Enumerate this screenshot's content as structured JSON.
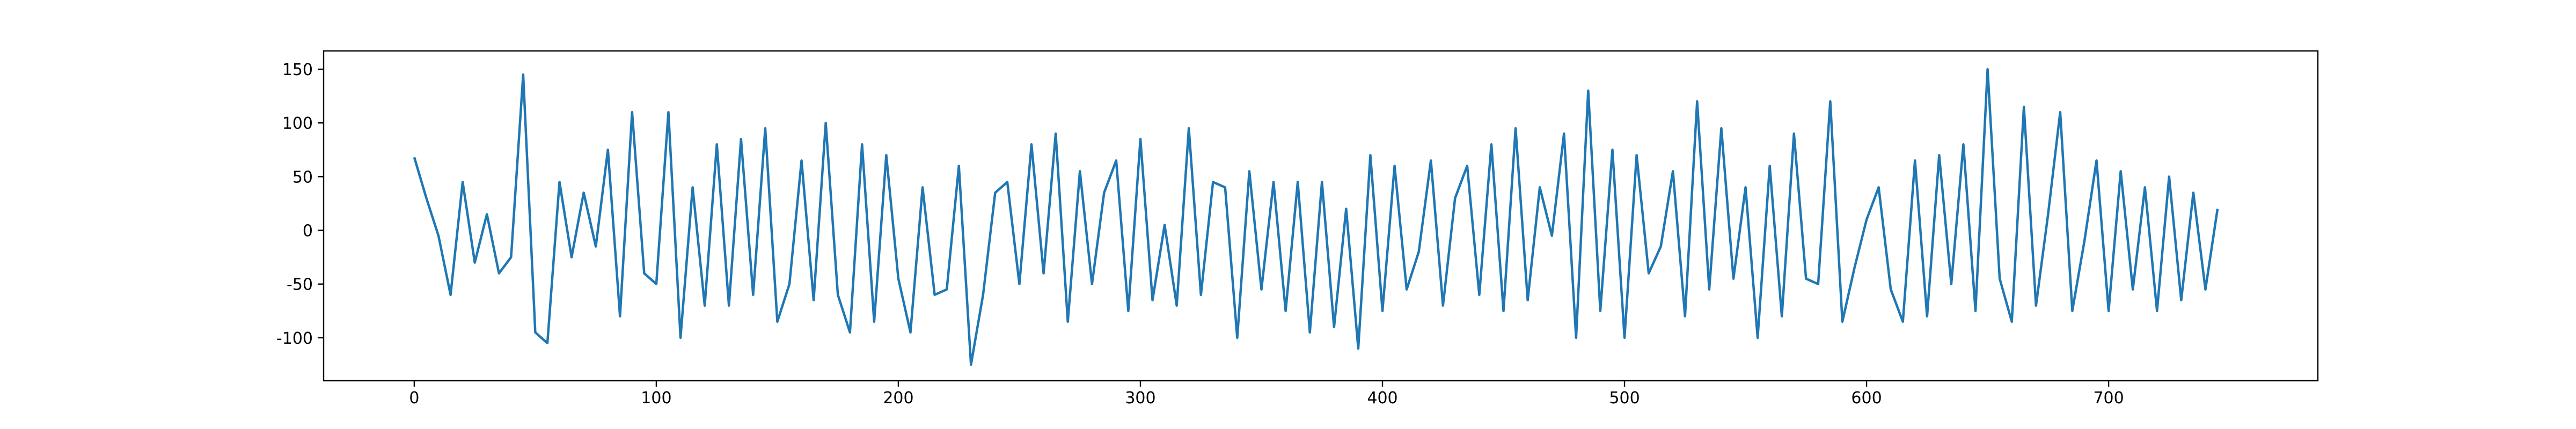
{
  "chart_data": {
    "type": "line",
    "x": [
      0,
      5,
      10,
      15,
      20,
      25,
      30,
      35,
      40,
      45,
      50,
      55,
      60,
      65,
      70,
      75,
      80,
      85,
      90,
      95,
      100,
      105,
      110,
      115,
      120,
      125,
      130,
      135,
      140,
      145,
      150,
      155,
      160,
      165,
      170,
      175,
      180,
      185,
      190,
      195,
      200,
      205,
      210,
      215,
      220,
      225,
      230,
      235,
      240,
      245,
      250,
      255,
      260,
      265,
      270,
      275,
      280,
      285,
      290,
      295,
      300,
      305,
      310,
      315,
      320,
      325,
      330,
      335,
      340,
      345,
      350,
      355,
      360,
      365,
      370,
      375,
      380,
      385,
      390,
      395,
      400,
      405,
      410,
      415,
      420,
      425,
      430,
      435,
      440,
      445,
      450,
      455,
      460,
      465,
      470,
      475,
      480,
      485,
      490,
      495,
      500,
      505,
      510,
      515,
      520,
      525,
      530,
      535,
      540,
      545,
      550,
      555,
      560,
      565,
      570,
      575,
      580,
      585,
      590,
      595,
      600,
      605,
      610,
      615,
      620,
      625,
      630,
      635,
      640,
      645,
      650,
      655,
      660,
      665,
      670,
      675,
      680,
      685,
      690,
      695,
      700,
      705,
      710,
      715,
      720,
      725,
      730,
      735,
      740,
      745
    ],
    "series": [
      {
        "color": "#1f77b4",
        "values": [
          68,
          30,
          -5,
          -60,
          45,
          -30,
          15,
          -40,
          -25,
          145,
          -95,
          -105,
          45,
          -25,
          35,
          -15,
          75,
          -80,
          110,
          -40,
          -50,
          110,
          -100,
          40,
          -70,
          80,
          -70,
          85,
          -60,
          95,
          -85,
          -50,
          65,
          -65,
          100,
          -60,
          -95,
          80,
          -85,
          70,
          -45,
          -95,
          40,
          -60,
          -55,
          60,
          -125,
          -60,
          35,
          45,
          -50,
          80,
          -40,
          90,
          -85,
          55,
          -50,
          35,
          65,
          -75,
          85,
          -65,
          5,
          -70,
          95,
          -60,
          45,
          40,
          -100,
          55,
          -55,
          45,
          -75,
          45,
          -95,
          45,
          -90,
          20,
          -110,
          70,
          -75,
          60,
          -55,
          -20,
          65,
          -70,
          30,
          60,
          -60,
          80,
          -75,
          95,
          -65,
          40,
          -5,
          90,
          -100,
          130,
          -75,
          75,
          -100,
          70,
          -40,
          -15,
          55,
          -80,
          120,
          -55,
          95,
          -45,
          40,
          -100,
          60,
          -80,
          90,
          -45,
          -50,
          120,
          -85,
          -35,
          10,
          40,
          -55,
          -85,
          65,
          -80,
          70,
          -50,
          80,
          -75,
          150,
          -45,
          -85,
          115,
          -70,
          15,
          110,
          -75,
          -10,
          65,
          -75,
          55,
          -55,
          40,
          -75,
          50,
          -65,
          35,
          -55,
          20
        ]
      }
    ],
    "xlim": [
      -37.45,
      786.45
    ],
    "ylim": [
      -140,
      167
    ],
    "xticks": [
      0,
      100,
      200,
      300,
      400,
      500,
      600,
      700
    ],
    "yticks": [
      -100,
      -50,
      0,
      50,
      100,
      150
    ]
  }
}
